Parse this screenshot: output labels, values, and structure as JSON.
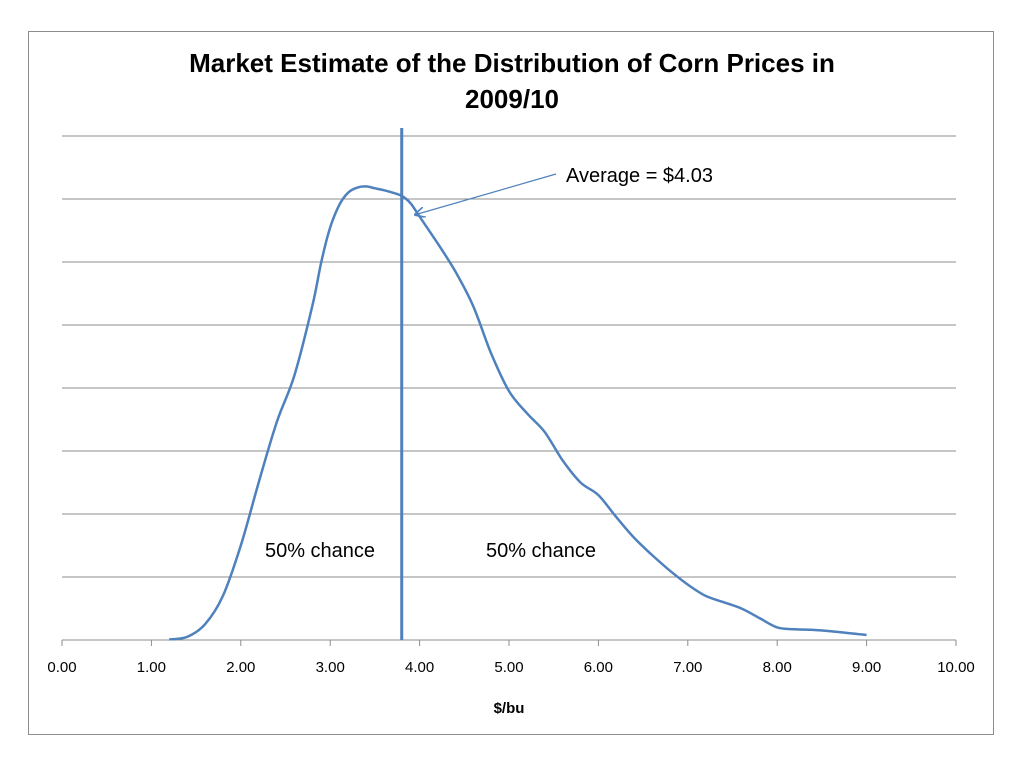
{
  "chart_data": {
    "type": "line",
    "title_lines": [
      "Market Estimate of the Distribution of Corn Prices in",
      "2009/10"
    ],
    "xlabel": "$/bu",
    "ylabel": "",
    "xlim": [
      0,
      10
    ],
    "ylim": [
      0,
      8
    ],
    "x_tick_labels": [
      "0.00",
      "1.00",
      "2.00",
      "3.00",
      "4.00",
      "5.00",
      "6.00",
      "7.00",
      "8.00",
      "9.00",
      "10.00"
    ],
    "y_gridlines": [
      1,
      2,
      3,
      4,
      5,
      6,
      7,
      8
    ],
    "grid": true,
    "legend": "none",
    "series_color": "#4f81bd",
    "series": [
      {
        "x": [
          1.2,
          1.4,
          1.6,
          1.8,
          2.0,
          2.2,
          2.4,
          2.6,
          2.8,
          2.9,
          3.0,
          3.1,
          3.2,
          3.3,
          3.4,
          3.5,
          3.6,
          3.7,
          3.8,
          3.9,
          4.0,
          4.2,
          4.4,
          4.6,
          4.8,
          5.0,
          5.2,
          5.4,
          5.6,
          5.8,
          6.0,
          6.2,
          6.4,
          6.6,
          6.8,
          7.0,
          7.2,
          7.4,
          7.6,
          7.8,
          8.0,
          8.2,
          8.4,
          8.6,
          8.8,
          9.0
        ],
        "y": [
          0.01,
          0.05,
          0.25,
          0.7,
          1.5,
          2.5,
          3.45,
          4.2,
          5.3,
          6.0,
          6.55,
          6.9,
          7.1,
          7.18,
          7.2,
          7.17,
          7.14,
          7.1,
          7.05,
          6.93,
          6.72,
          6.3,
          5.85,
          5.3,
          4.55,
          3.95,
          3.6,
          3.3,
          2.85,
          2.5,
          2.3,
          1.95,
          1.62,
          1.35,
          1.1,
          0.88,
          0.7,
          0.6,
          0.5,
          0.35,
          0.2,
          0.17,
          0.16,
          0.14,
          0.11,
          0.08
        ]
      }
    ],
    "reference_line_x": 3.8,
    "annotations": [
      {
        "text": "Average = $4.03",
        "points_to_x": 3.95,
        "points_to_y": 6.75
      },
      {
        "text": "50% chance",
        "side": "left"
      },
      {
        "text": "50% chance",
        "side": "right"
      }
    ]
  }
}
